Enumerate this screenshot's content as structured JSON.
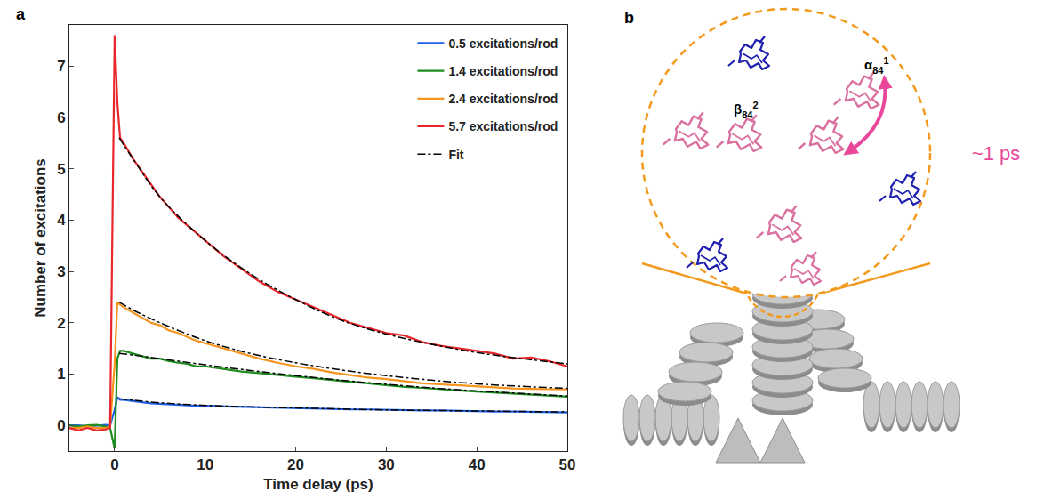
{
  "chart_data": {
    "type": "line",
    "panel_label": "a",
    "x_label": "Time delay (ps)",
    "y_label": "Number of excitations",
    "xlim": [
      -5,
      50
    ],
    "ylim": [
      -0.5,
      7.8
    ],
    "xticks": [
      0,
      10,
      20,
      30,
      40,
      50
    ],
    "yticks": [
      0,
      1,
      2,
      3,
      4,
      5,
      6,
      7
    ],
    "legend": "upper right",
    "grid": false,
    "x": [
      -5,
      -4,
      -3,
      -2,
      -1,
      -0.5,
      0,
      0.3,
      0.6,
      1,
      2,
      3,
      4,
      5,
      6,
      7,
      8,
      9,
      10,
      12,
      14,
      16,
      18,
      20,
      22,
      24,
      26,
      28,
      30,
      32,
      34,
      36,
      38,
      40,
      42,
      44,
      46,
      48,
      50
    ],
    "series": [
      {
        "name": "0.5 excitations/rod",
        "color": "#1f5fe8",
        "line_style": "solid",
        "values": [
          0,
          0,
          -0.02,
          0,
          0.01,
          0,
          0.3,
          0.55,
          0.5,
          0.5,
          0.47,
          0.45,
          0.43,
          0.42,
          0.4,
          0.4,
          0.39,
          0.38,
          0.38,
          0.37,
          0.36,
          0.35,
          0.34,
          0.33,
          0.33,
          0.32,
          0.31,
          0.31,
          0.3,
          0.3,
          0.29,
          0.29,
          0.28,
          0.28,
          0.27,
          0.27,
          0.26,
          0.26,
          0.25
        ]
      },
      {
        "name": "1.4 excitations/rod",
        "color": "#1e8c1e",
        "line_style": "solid",
        "values": [
          0,
          -0.02,
          0,
          0.01,
          -0.02,
          -0.05,
          -0.45,
          1.3,
          1.45,
          1.45,
          1.4,
          1.35,
          1.3,
          1.3,
          1.25,
          1.22,
          1.2,
          1.15,
          1.15,
          1.1,
          1.05,
          1.02,
          0.98,
          0.95,
          0.92,
          0.88,
          0.85,
          0.82,
          0.78,
          0.75,
          0.73,
          0.7,
          0.68,
          0.66,
          0.64,
          0.62,
          0.6,
          0.58,
          0.56
        ]
      },
      {
        "name": "2.4 excitations/rod",
        "color": "#f7941d",
        "line_style": "solid",
        "values": [
          -0.05,
          -0.05,
          -0.02,
          -0.05,
          -0.05,
          -0.03,
          1.2,
          2.4,
          2.35,
          2.3,
          2.2,
          2.1,
          2.0,
          1.95,
          1.85,
          1.8,
          1.72,
          1.65,
          1.6,
          1.5,
          1.4,
          1.3,
          1.22,
          1.15,
          1.1,
          1.03,
          0.98,
          0.93,
          0.9,
          0.86,
          0.82,
          0.8,
          0.78,
          0.75,
          0.73,
          0.72,
          0.71,
          0.7,
          0.7
        ]
      },
      {
        "name": "5.7 excitations/rod",
        "color": "#e8262b",
        "line_style": "solid",
        "values": [
          -0.05,
          -0.1,
          -0.05,
          -0.1,
          -0.08,
          -0.05,
          7.6,
          6.3,
          5.6,
          5.5,
          5.2,
          4.95,
          4.7,
          4.45,
          4.25,
          4.05,
          3.9,
          3.75,
          3.6,
          3.3,
          3.05,
          2.8,
          2.6,
          2.45,
          2.3,
          2.15,
          2.0,
          1.9,
          1.8,
          1.75,
          1.62,
          1.55,
          1.5,
          1.45,
          1.4,
          1.3,
          1.32,
          1.25,
          1.15
        ]
      },
      {
        "name": "Fit",
        "color": "#000000",
        "line_style": "dashdot",
        "x": [
          0.5,
          2,
          5,
          10,
          15,
          20,
          25,
          30,
          35,
          40,
          45,
          50
        ],
        "values": [
          0.52,
          0.49,
          0.44,
          0.39,
          0.36,
          0.34,
          0.32,
          0.3,
          0.29,
          0.28,
          0.27,
          0.26
        ]
      },
      {
        "name": "Fit",
        "color": "#000000",
        "line_style": "dashdot",
        "x": [
          0.5,
          2,
          5,
          10,
          15,
          20,
          25,
          30,
          35,
          40,
          45,
          50
        ],
        "values": [
          1.4,
          1.37,
          1.3,
          1.18,
          1.07,
          0.97,
          0.88,
          0.8,
          0.73,
          0.67,
          0.62,
          0.57
        ]
      },
      {
        "name": "Fit",
        "color": "#000000",
        "line_style": "dashdot",
        "x": [
          0.5,
          2,
          5,
          10,
          15,
          20,
          25,
          30,
          35,
          40,
          45,
          50
        ],
        "values": [
          2.4,
          2.25,
          2.0,
          1.65,
          1.4,
          1.22,
          1.08,
          0.97,
          0.88,
          0.81,
          0.76,
          0.72
        ]
      },
      {
        "name": "Fit",
        "color": "#000000",
        "line_style": "dashdot",
        "x": [
          0.5,
          2,
          5,
          10,
          15,
          20,
          25,
          30,
          35,
          40,
          45,
          50
        ],
        "values": [
          5.6,
          5.2,
          4.45,
          3.6,
          2.95,
          2.45,
          2.05,
          1.78,
          1.58,
          1.42,
          1.3,
          1.2
        ]
      }
    ]
  },
  "diagram": {
    "panel_label": "b",
    "labels": [
      {
        "symbol": "α",
        "sub": "84",
        "sup": "1"
      },
      {
        "symbol": "β",
        "sub": "84",
        "sup": "2"
      }
    ],
    "timescale": "~1 ps"
  }
}
